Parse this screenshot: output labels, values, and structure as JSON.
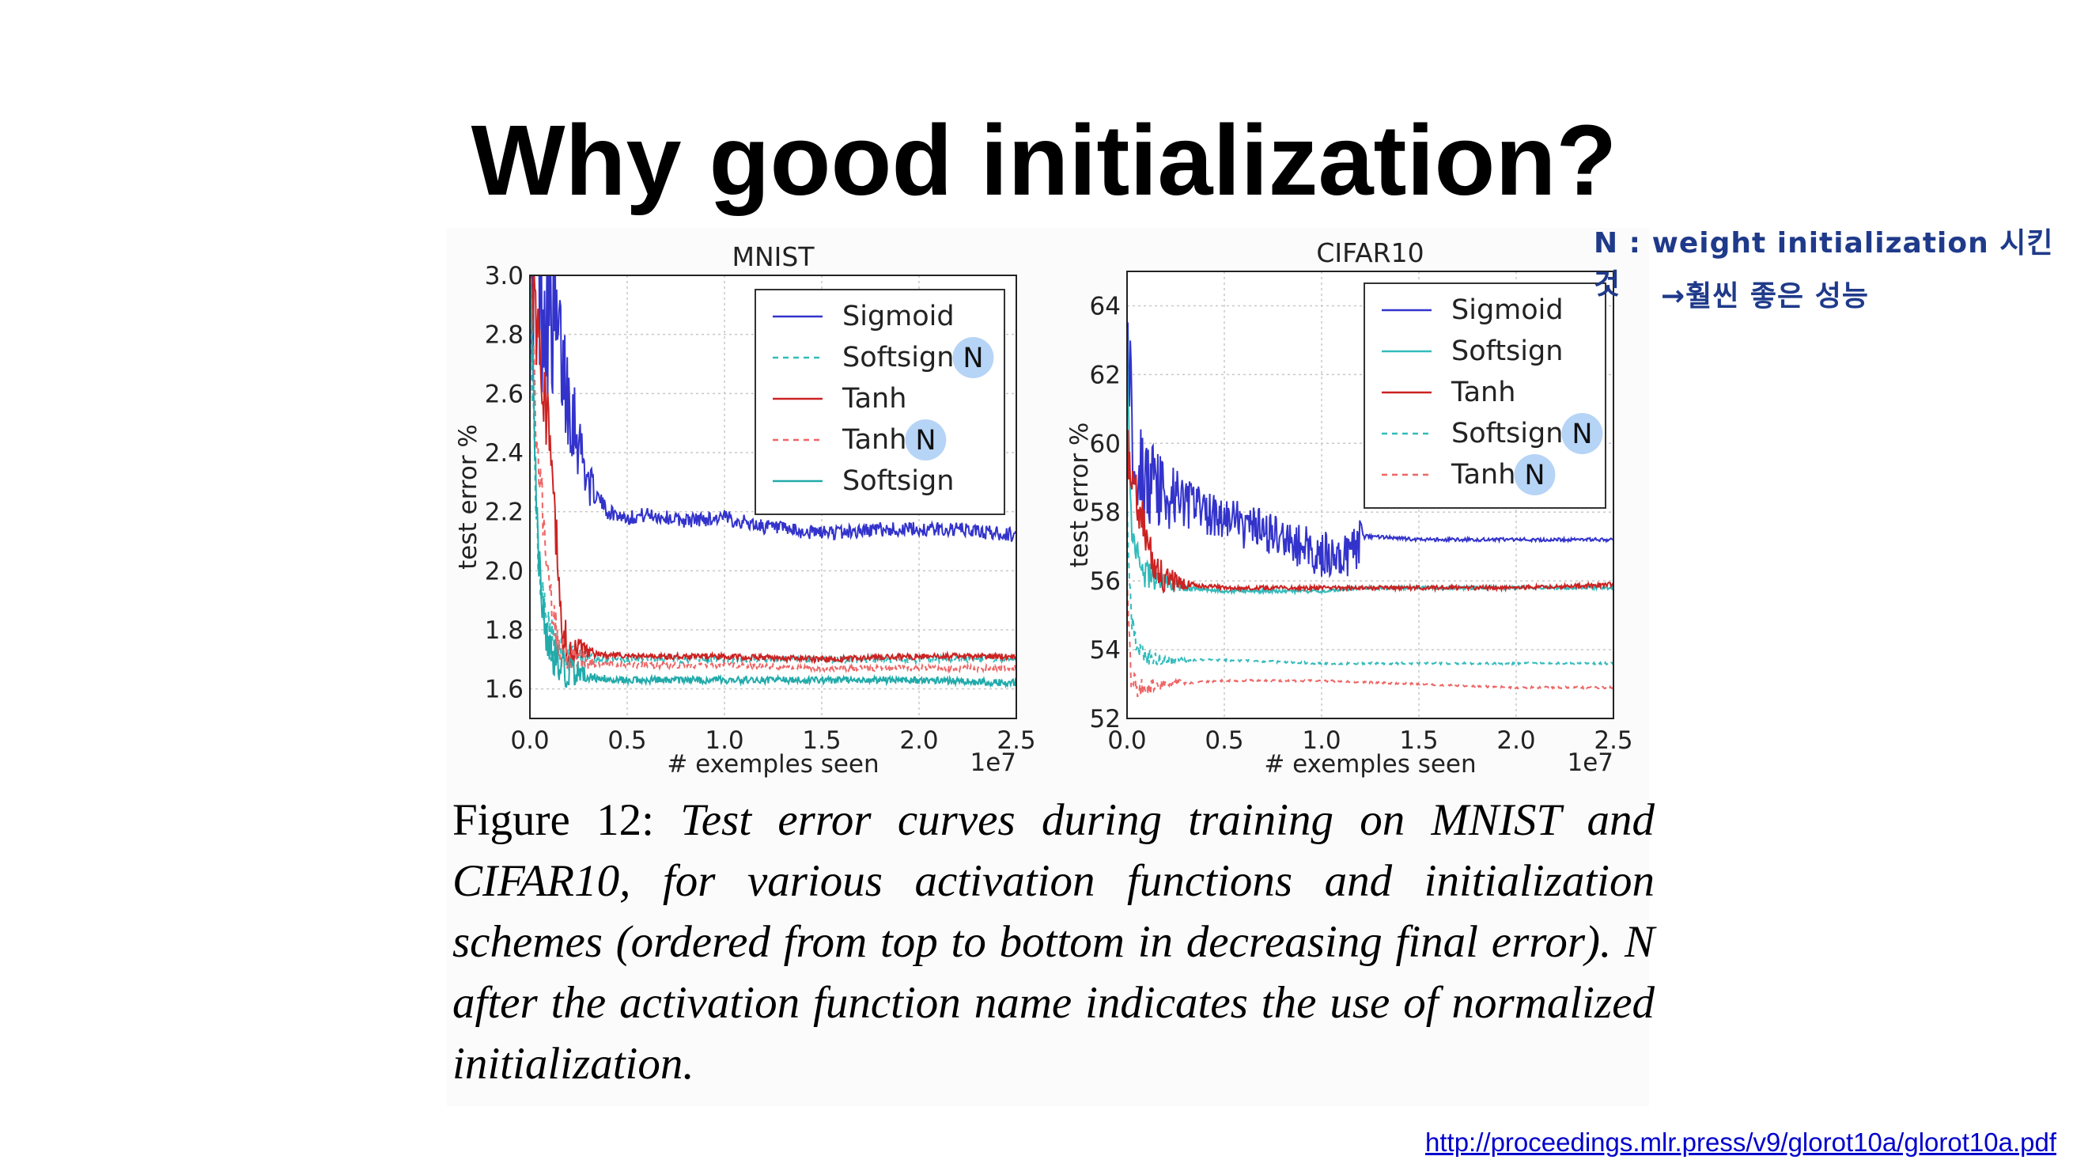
{
  "slide": {
    "title": "Why good initialization?",
    "note_line1": "N : weight initialization 시킨 것",
    "note_line2": "→훨씬 좋은 성능",
    "reference_url": "http://proceedings.mlr.press/v9/glorot10a/glorot10a.pdf"
  },
  "caption": {
    "lead": "Figure 12:",
    "body": "Test error curves during training on MNIST and CIFAR10, for various activation functions and initialization schemes (ordered from top to bottom in decreasing final error). N after the activation function name indicates the use of normalized initialization."
  },
  "chart_data": [
    {
      "type": "line",
      "title": "MNIST",
      "xlabel": "# exemples seen",
      "x_multiplier": "1e7",
      "ylabel": "test error %",
      "xlim": [
        0,
        2.5
      ],
      "ylim": [
        1.5,
        3.0
      ],
      "xticks": [
        "0.0",
        "0.5",
        "1.0",
        "1.5",
        "2.0",
        "2.5"
      ],
      "yticks": [
        "1.6",
        "1.8",
        "2.0",
        "2.2",
        "2.4",
        "2.6",
        "2.8",
        "3.0"
      ],
      "grid": true,
      "legend_position": "top-right",
      "highlight_marker": "N",
      "series": [
        {
          "name": "Sigmoid",
          "color": "#3333cc",
          "dash": "solid",
          "noise": 0.025,
          "early_noise": 0.4,
          "x": [
            0.03,
            0.1,
            0.2,
            0.3,
            0.4,
            0.5,
            0.6,
            0.8,
            1.0,
            1.2,
            1.4,
            1.6,
            1.8,
            2.0,
            2.2,
            2.5
          ],
          "y": [
            3.0,
            2.9,
            2.6,
            2.3,
            2.2,
            2.18,
            2.19,
            2.17,
            2.18,
            2.15,
            2.13,
            2.13,
            2.14,
            2.14,
            2.14,
            2.12
          ]
        },
        {
          "name": "Softsign",
          "legend_suffix": "N",
          "color": "#33bbbb",
          "dash": "dashed",
          "noise": 0.012,
          "early_noise": 0.1,
          "x": [
            0.0,
            0.03,
            0.07,
            0.12,
            0.2,
            0.3,
            0.5,
            0.8,
            1.0,
            1.5,
            2.0,
            2.5
          ],
          "y": [
            3.0,
            2.2,
            1.85,
            1.74,
            1.71,
            1.7,
            1.7,
            1.7,
            1.7,
            1.7,
            1.7,
            1.7
          ]
        },
        {
          "name": "Tanh",
          "color": "#cc2222",
          "dash": "solid",
          "noise": 0.01,
          "early_noise": 0.15,
          "x": [
            0.0,
            0.06,
            0.12,
            0.16,
            0.2,
            0.3,
            0.5,
            0.8,
            1.0,
            1.5,
            2.0,
            2.5
          ],
          "y": [
            3.0,
            2.7,
            2.3,
            1.8,
            1.73,
            1.72,
            1.71,
            1.71,
            1.71,
            1.7,
            1.71,
            1.71
          ]
        },
        {
          "name": "Tanh",
          "legend_suffix": "N",
          "color": "#ee6666",
          "dash": "dashed",
          "noise": 0.01,
          "early_noise": 0.1,
          "x": [
            0.0,
            0.04,
            0.1,
            0.15,
            0.2,
            0.3,
            0.5,
            0.8,
            1.0,
            1.5,
            2.0,
            2.5
          ],
          "y": [
            3.0,
            2.4,
            1.95,
            1.75,
            1.71,
            1.69,
            1.68,
            1.68,
            1.68,
            1.67,
            1.67,
            1.67
          ]
        },
        {
          "name": "Softsign",
          "color": "#22aaaa",
          "dash": "solid",
          "noise": 0.012,
          "early_noise": 0.1,
          "x": [
            0.0,
            0.03,
            0.06,
            0.1,
            0.15,
            0.2,
            0.3,
            0.5,
            0.8,
            1.0,
            1.5,
            2.0,
            2.5
          ],
          "y": [
            3.0,
            2.3,
            1.85,
            1.72,
            1.68,
            1.66,
            1.64,
            1.63,
            1.63,
            1.63,
            1.63,
            1.63,
            1.62
          ]
        }
      ]
    },
    {
      "type": "line",
      "title": "CIFAR10",
      "xlabel": "# exemples seen",
      "x_multiplier": "1e7",
      "ylabel": "test error %",
      "xlim": [
        0,
        2.5
      ],
      "ylim": [
        52,
        65
      ],
      "xticks": [
        "0.0",
        "0.5",
        "1.0",
        "1.5",
        "2.0",
        "2.5"
      ],
      "yticks": [
        "52",
        "54",
        "56",
        "58",
        "60",
        "62",
        "64"
      ],
      "grid": true,
      "legend_position": "top-right",
      "highlight_marker": "N",
      "series": [
        {
          "name": "Sigmoid",
          "color": "#3333cc",
          "dash": "solid",
          "noise": 0.7,
          "noise_until": 1.22,
          "early_noise": 1.0,
          "x": [
            0.0,
            0.03,
            0.08,
            0.15,
            0.3,
            0.5,
            0.7,
            0.9,
            1.0,
            1.1,
            1.2,
            1.23,
            1.5,
            2.0,
            2.5
          ],
          "y": [
            64,
            60,
            59,
            58.6,
            58.3,
            57.8,
            57.4,
            57.0,
            56.8,
            56.7,
            57.1,
            57.3,
            57.2,
            57.2,
            57.2
          ]
        },
        {
          "name": "Softsign",
          "color": "#33bbbb",
          "dash": "solid",
          "noise": 0.05,
          "early_noise": 0.6,
          "x": [
            0.0,
            0.02,
            0.05,
            0.1,
            0.2,
            0.3,
            0.5,
            0.8,
            1.0,
            1.2,
            1.5,
            2.0,
            2.5
          ],
          "y": [
            63,
            58,
            56.6,
            56.2,
            55.9,
            55.8,
            55.7,
            55.7,
            55.7,
            55.8,
            55.8,
            55.8,
            55.8
          ]
        },
        {
          "name": "Tanh",
          "color": "#cc2222",
          "dash": "solid",
          "noise": 0.06,
          "early_noise": 0.8,
          "x": [
            0.0,
            0.03,
            0.08,
            0.12,
            0.18,
            0.3,
            0.5,
            0.8,
            1.0,
            1.2,
            1.5,
            2.0,
            2.5
          ],
          "y": [
            60,
            58.6,
            57.8,
            56.8,
            56.1,
            55.9,
            55.8,
            55.8,
            55.8,
            55.8,
            55.8,
            55.8,
            55.9
          ]
        },
        {
          "name": "Softsign",
          "legend_suffix": "N",
          "color": "#33bbbb",
          "dash": "dashed",
          "noise": 0.03,
          "early_noise": 0.3,
          "x": [
            0.0,
            0.02,
            0.05,
            0.1,
            0.2,
            0.5,
            1.0,
            1.5,
            2.0,
            2.5
          ],
          "y": [
            58,
            55,
            54.0,
            53.8,
            53.7,
            53.7,
            53.6,
            53.6,
            53.6,
            53.6
          ]
        },
        {
          "name": "Tanh",
          "legend_suffix": "N",
          "color": "#ee6666",
          "dash": "dashed",
          "noise": 0.03,
          "early_noise": 0.3,
          "x": [
            0.0,
            0.02,
            0.05,
            0.1,
            0.2,
            0.5,
            1.0,
            1.5,
            2.0,
            2.5
          ],
          "y": [
            56,
            53.2,
            52.9,
            52.9,
            53.0,
            53.1,
            53.1,
            53.0,
            52.9,
            52.9
          ]
        }
      ]
    }
  ]
}
